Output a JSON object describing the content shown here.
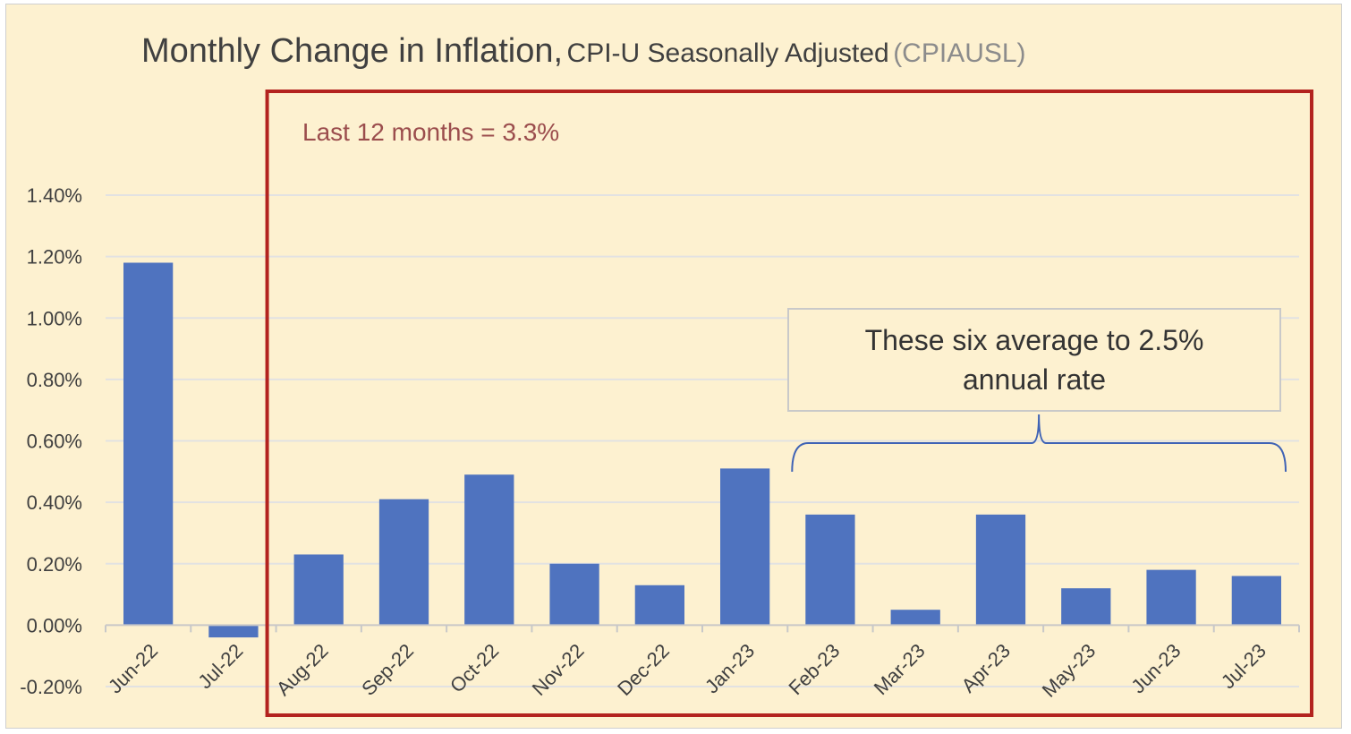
{
  "title": {
    "main": "Monthly Change in Inflation,",
    "subtitle": "CPI-U Seasonally Adjusted",
    "series_code": "(CPIAUSL)"
  },
  "annotations": {
    "highlight_box_label": "Last 12 months = 3.3%",
    "bracket_note": "These six average to 2.5%\nannual rate"
  },
  "colors": {
    "background": "#fdf1d0",
    "bar": "#4f73bf",
    "highlight_box": "#b3231f",
    "bracket": "#3f63b5",
    "gridline": "#e2e2e2"
  },
  "chart_data": {
    "type": "bar",
    "title": "Monthly Change in Inflation, CPI-U Seasonally Adjusted (CPIAUSL)",
    "categories": [
      "Jun-22",
      "Jul-22",
      "Aug-22",
      "Sep-22",
      "Oct-22",
      "Nov-22",
      "Dec-22",
      "Jan-23",
      "Feb-23",
      "Mar-23",
      "Apr-23",
      "May-23",
      "Jun-23",
      "Jul-23"
    ],
    "series": [
      {
        "values": [
          1.18,
          -0.04,
          0.23,
          0.41,
          0.49,
          0.2,
          0.13,
          0.51,
          0.36,
          0.05,
          0.36,
          0.12,
          0.18,
          0.16
        ]
      }
    ],
    "yticks": [
      "-0.20%",
      "0.00%",
      "0.20%",
      "0.40%",
      "0.60%",
      "0.80%",
      "1.00%",
      "1.20%",
      "1.40%"
    ],
    "ylim": [
      -0.2,
      1.4
    ],
    "xlabel": "",
    "ylabel": "",
    "grid": true,
    "legend": "none",
    "highlight_range": [
      "Aug-22",
      "Jul-23"
    ],
    "bracket_range": [
      "Feb-23",
      "Jul-23"
    ]
  }
}
